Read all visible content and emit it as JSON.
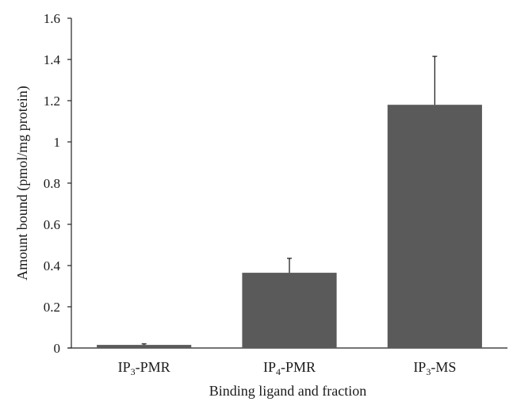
{
  "chart_data": {
    "type": "bar",
    "xlabel": "Binding ligand and fraction",
    "ylabel": "Amount bound (pmol/mg protein)",
    "ylim": [
      0,
      1.6
    ],
    "yticks": [
      "0",
      "0.2",
      "0.4",
      "0.6",
      "0.8",
      "1",
      "1.2",
      "1.4",
      "1.6"
    ],
    "grid": false,
    "legend": "none",
    "bar_color": "#5a5a5a",
    "categories": [
      {
        "main": "IP",
        "sub": "3",
        "suffix": "-PMR"
      },
      {
        "main": "IP",
        "sub": "4",
        "suffix": "-PMR"
      },
      {
        "main": "IP",
        "sub": "3",
        "suffix": "-MS"
      }
    ],
    "values": [
      0.015,
      0.365,
      1.18
    ],
    "error_upper": [
      0.005,
      0.07,
      0.235
    ]
  }
}
